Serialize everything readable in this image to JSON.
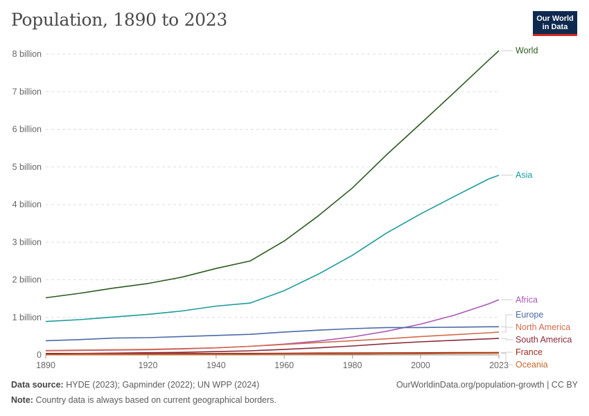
{
  "header": {
    "title": "Population, 1890 to 2023",
    "logo_line1": "Our World",
    "logo_line2": "in Data"
  },
  "footer": {
    "source_label": "Data source:",
    "source_text": "HYDE (2023); Gapminder (2022); UN WPP (2024)",
    "note_label": "Note:",
    "note_text": "Country data is always based on current geographical borders.",
    "url_text": "OurWorldinData.org/population-growth | CC BY"
  },
  "chart_data": {
    "type": "line",
    "title": "Population, 1890 to 2023",
    "xlim": [
      1890,
      2023
    ],
    "ylim": [
      0,
      8000000000
    ],
    "x_ticks": [
      1890,
      1920,
      1940,
      1960,
      1980,
      2000,
      2023
    ],
    "y_ticks": [
      {
        "value": 0,
        "label": "0"
      },
      {
        "value": 1000000000,
        "label": "1 billion"
      },
      {
        "value": 2000000000,
        "label": "2 billion"
      },
      {
        "value": 3000000000,
        "label": "3 billion"
      },
      {
        "value": 4000000000,
        "label": "4 billion"
      },
      {
        "value": 5000000000,
        "label": "5 billion"
      },
      {
        "value": 6000000000,
        "label": "6 billion"
      },
      {
        "value": 7000000000,
        "label": "7 billion"
      },
      {
        "value": 8000000000,
        "label": "8 billion"
      }
    ],
    "grid": "horizontal-dashed",
    "legend": "right-end-labels",
    "x": [
      1890,
      1900,
      1910,
      1920,
      1930,
      1940,
      1950,
      1960,
      1970,
      1980,
      1990,
      2000,
      2010,
      2020,
      2023
    ],
    "series": [
      {
        "name": "World",
        "color": "#2b5a1f",
        "values": [
          1520000000,
          1640000000,
          1780000000,
          1900000000,
          2070000000,
          2300000000,
          2500000000,
          3030000000,
          3700000000,
          4440000000,
          5320000000,
          6150000000,
          6990000000,
          7840000000,
          8090000000
        ]
      },
      {
        "name": "Asia",
        "color": "#1a9a9a",
        "values": [
          890000000,
          940000000,
          1010000000,
          1080000000,
          1170000000,
          1300000000,
          1380000000,
          1710000000,
          2150000000,
          2650000000,
          3240000000,
          3750000000,
          4220000000,
          4680000000,
          4780000000
        ]
      },
      {
        "name": "Africa",
        "color": "#a957b5",
        "values": [
          110000000,
          120000000,
          130000000,
          140000000,
          160000000,
          190000000,
          230000000,
          290000000,
          370000000,
          480000000,
          630000000,
          820000000,
          1060000000,
          1360000000,
          1470000000
        ]
      },
      {
        "name": "Europe",
        "color": "#4a6aa6",
        "values": [
          380000000,
          410000000,
          450000000,
          460000000,
          490000000,
          520000000,
          550000000,
          610000000,
          660000000,
          700000000,
          730000000,
          730000000,
          740000000,
          750000000,
          750000000
        ]
      },
      {
        "name": "North America",
        "color": "#d36a4a",
        "values": [
          120000000,
          130000000,
          140000000,
          150000000,
          170000000,
          190000000,
          230000000,
          280000000,
          330000000,
          380000000,
          430000000,
          490000000,
          540000000,
          590000000,
          610000000
        ]
      },
      {
        "name": "South America",
        "color": "#8a2a3a",
        "values": [
          30000000,
          40000000,
          50000000,
          60000000,
          70000000,
          90000000,
          110000000,
          150000000,
          190000000,
          240000000,
          300000000,
          350000000,
          390000000,
          430000000,
          440000000
        ]
      },
      {
        "name": "France",
        "color": "#a02a1a",
        "values": [
          40000000,
          41000000,
          41000000,
          39000000,
          41000000,
          41000000,
          42000000,
          46000000,
          51000000,
          54000000,
          57000000,
          59000000,
          63000000,
          65000000,
          66000000
        ]
      },
      {
        "name": "Oceania",
        "color": "#c26a2a",
        "values": [
          5000000,
          6000000,
          7000000,
          8000000,
          10000000,
          11000000,
          13000000,
          16000000,
          20000000,
          23000000,
          27000000,
          31000000,
          37000000,
          43000000,
          45000000
        ]
      }
    ]
  }
}
